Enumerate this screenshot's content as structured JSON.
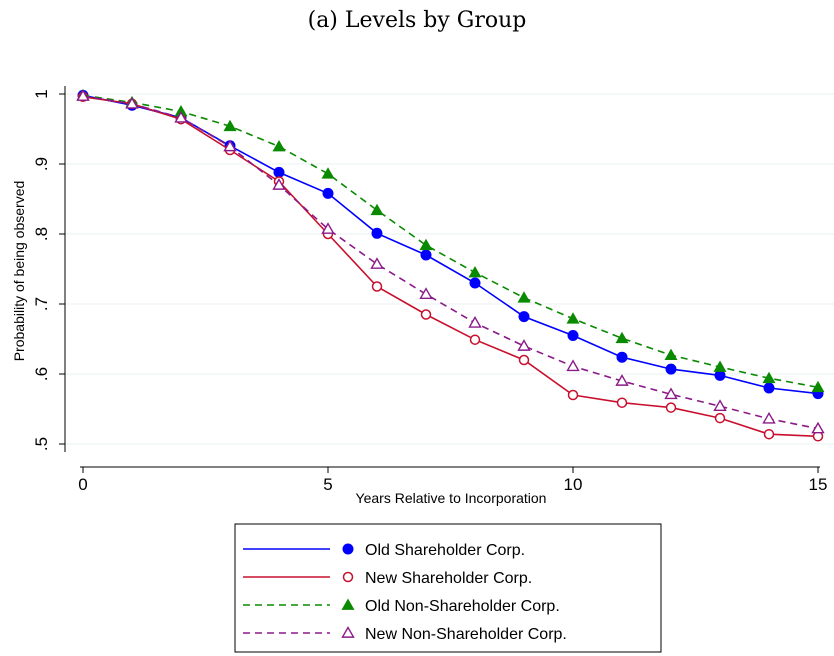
{
  "chart_data": {
    "type": "line",
    "title": "(a) Levels by Group",
    "xlabel": "Years Relative to Incorporation",
    "ylabel": "Probability of being observed",
    "xlim": [
      0,
      15
    ],
    "ylim": [
      0.5,
      1.0
    ],
    "xticks": [
      0,
      5,
      10,
      15
    ],
    "xtick_labels": [
      "0",
      "5",
      "10",
      "15"
    ],
    "yticks": [
      0.5,
      0.6,
      0.7,
      0.8,
      0.9,
      1.0
    ],
    "ytick_labels": [
      ".5",
      ".6",
      ".7",
      ".8",
      ".9",
      "1"
    ],
    "grid": "horizontal",
    "legend_position": "bottom",
    "x": [
      0,
      1,
      2,
      3,
      4,
      5,
      6,
      7,
      8,
      9,
      10,
      11,
      12,
      13,
      14,
      15
    ],
    "series": [
      {
        "name": "Old Shareholder Corp.",
        "color": "#0000ff",
        "line_style": "solid",
        "marker": "filled-circle",
        "values": [
          0.998,
          0.984,
          0.966,
          0.926,
          0.888,
          0.858,
          0.801,
          0.77,
          0.73,
          0.682,
          0.655,
          0.624,
          0.607,
          0.598,
          0.58,
          0.572
        ]
      },
      {
        "name": "New Shareholder Corp.",
        "color": "#c8102e",
        "line_style": "solid",
        "marker": "hollow-circle",
        "values": [
          0.996,
          0.986,
          0.964,
          0.92,
          0.875,
          0.8,
          0.725,
          0.685,
          0.649,
          0.62,
          0.57,
          0.559,
          0.552,
          0.537,
          0.514,
          0.511
        ]
      },
      {
        "name": "Old Non-Shareholder Corp.",
        "color": "#0a8a00",
        "line_style": "dashed",
        "marker": "filled-triangle",
        "values": [
          0.998,
          0.988,
          0.975,
          0.954,
          0.925,
          0.886,
          0.834,
          0.784,
          0.745,
          0.709,
          0.679,
          0.651,
          0.627,
          0.61,
          0.594,
          0.581
        ]
      },
      {
        "name": "New Non-Shareholder Corp.",
        "color": "#8b1a89",
        "line_style": "dashed",
        "marker": "hollow-triangle",
        "values": [
          0.997,
          0.986,
          0.966,
          0.925,
          0.87,
          0.807,
          0.757,
          0.714,
          0.673,
          0.64,
          0.611,
          0.59,
          0.571,
          0.554,
          0.536,
          0.522
        ]
      }
    ]
  }
}
